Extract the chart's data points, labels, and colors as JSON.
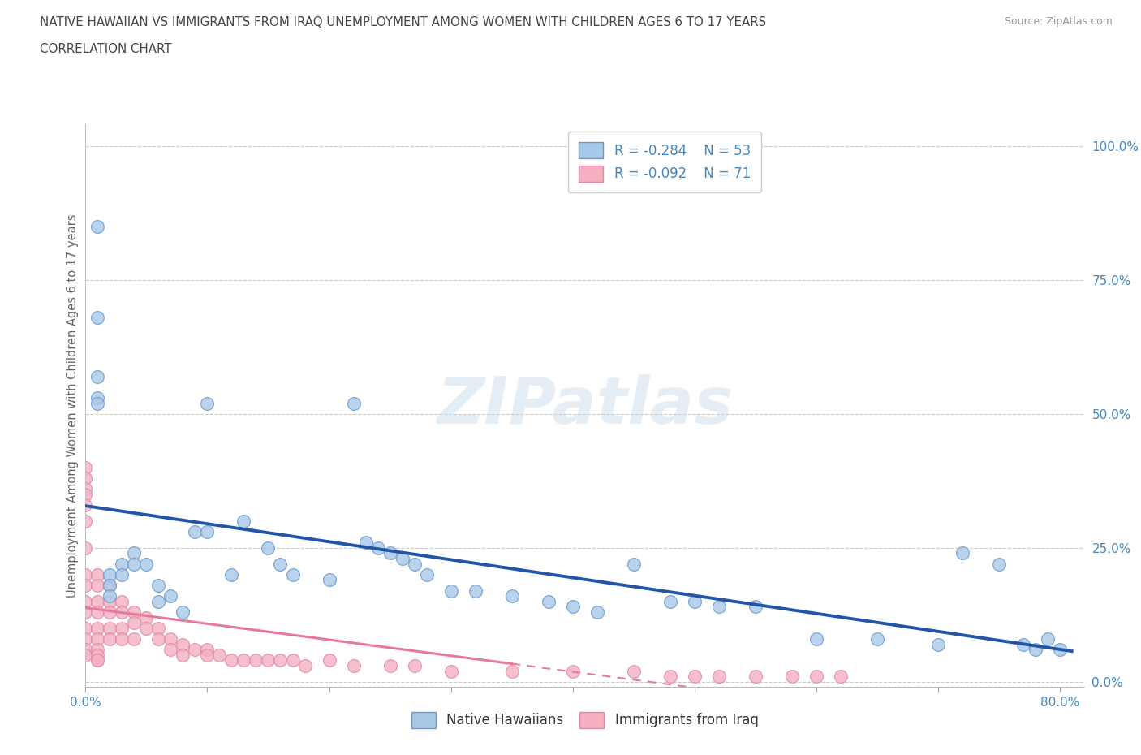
{
  "title_line1": "NATIVE HAWAIIAN VS IMMIGRANTS FROM IRAQ UNEMPLOYMENT AMONG WOMEN WITH CHILDREN AGES 6 TO 17 YEARS",
  "title_line2": "CORRELATION CHART",
  "source_text": "Source: ZipAtlas.com",
  "ylabel": "Unemployment Among Women with Children Ages 6 to 17 years",
  "xlim": [
    0.0,
    0.82
  ],
  "ylim": [
    -0.01,
    1.04
  ],
  "ytick_positions": [
    0.0,
    0.25,
    0.5,
    0.75,
    1.0
  ],
  "yticklabels_right": [
    "0.0%",
    "25.0%",
    "50.0%",
    "75.0%",
    "100.0%"
  ],
  "grid_color": "#cccccc",
  "background_color": "#ffffff",
  "watermark_text": "ZIPatlas",
  "blue_color": "#a8c8e8",
  "blue_edge": "#6699cc",
  "pink_color": "#f4b0c0",
  "pink_edge": "#dd88aa",
  "blue_line_color": "#2255aa",
  "pink_line_color": "#e8799a",
  "title_color": "#444444",
  "axis_color": "#4488bb",
  "blue_scatter_x": [
    0.01,
    0.01,
    0.01,
    0.01,
    0.01,
    0.02,
    0.02,
    0.02,
    0.03,
    0.03,
    0.04,
    0.04,
    0.05,
    0.06,
    0.06,
    0.07,
    0.08,
    0.09,
    0.1,
    0.1,
    0.12,
    0.13,
    0.15,
    0.16,
    0.17,
    0.2,
    0.22,
    0.23,
    0.24,
    0.25,
    0.26,
    0.27,
    0.28,
    0.3,
    0.32,
    0.35,
    0.38,
    0.4,
    0.42,
    0.45,
    0.48,
    0.5,
    0.52,
    0.55,
    0.6,
    0.65,
    0.7,
    0.72,
    0.75,
    0.77,
    0.78,
    0.79,
    0.8
  ],
  "blue_scatter_y": [
    0.85,
    0.68,
    0.57,
    0.53,
    0.52,
    0.2,
    0.18,
    0.16,
    0.22,
    0.2,
    0.24,
    0.22,
    0.22,
    0.18,
    0.15,
    0.16,
    0.13,
    0.28,
    0.52,
    0.28,
    0.2,
    0.3,
    0.25,
    0.22,
    0.2,
    0.19,
    0.52,
    0.26,
    0.25,
    0.24,
    0.23,
    0.22,
    0.2,
    0.17,
    0.17,
    0.16,
    0.15,
    0.14,
    0.13,
    0.22,
    0.15,
    0.15,
    0.14,
    0.14,
    0.08,
    0.08,
    0.07,
    0.24,
    0.22,
    0.07,
    0.06,
    0.08,
    0.06
  ],
  "pink_scatter_x": [
    0.0,
    0.0,
    0.0,
    0.0,
    0.0,
    0.0,
    0.0,
    0.0,
    0.0,
    0.0,
    0.0,
    0.0,
    0.0,
    0.0,
    0.0,
    0.01,
    0.01,
    0.01,
    0.01,
    0.01,
    0.01,
    0.01,
    0.01,
    0.01,
    0.01,
    0.02,
    0.02,
    0.02,
    0.02,
    0.02,
    0.03,
    0.03,
    0.03,
    0.03,
    0.04,
    0.04,
    0.04,
    0.05,
    0.05,
    0.06,
    0.06,
    0.07,
    0.07,
    0.08,
    0.08,
    0.09,
    0.1,
    0.1,
    0.11,
    0.12,
    0.13,
    0.14,
    0.15,
    0.16,
    0.17,
    0.18,
    0.2,
    0.22,
    0.25,
    0.27,
    0.3,
    0.35,
    0.4,
    0.45,
    0.48,
    0.5,
    0.52,
    0.55,
    0.58,
    0.6,
    0.62
  ],
  "pink_scatter_y": [
    0.4,
    0.38,
    0.36,
    0.35,
    0.33,
    0.3,
    0.25,
    0.2,
    0.18,
    0.15,
    0.13,
    0.1,
    0.08,
    0.06,
    0.05,
    0.2,
    0.18,
    0.15,
    0.13,
    0.1,
    0.08,
    0.06,
    0.05,
    0.04,
    0.04,
    0.18,
    0.15,
    0.13,
    0.1,
    0.08,
    0.15,
    0.13,
    0.1,
    0.08,
    0.13,
    0.11,
    0.08,
    0.12,
    0.1,
    0.1,
    0.08,
    0.08,
    0.06,
    0.07,
    0.05,
    0.06,
    0.06,
    0.05,
    0.05,
    0.04,
    0.04,
    0.04,
    0.04,
    0.04,
    0.04,
    0.03,
    0.04,
    0.03,
    0.03,
    0.03,
    0.02,
    0.02,
    0.02,
    0.02,
    0.01,
    0.01,
    0.01,
    0.01,
    0.01,
    0.01,
    0.01
  ],
  "pink_line_solid_end": 0.35,
  "pink_line_dash_start": 0.35
}
